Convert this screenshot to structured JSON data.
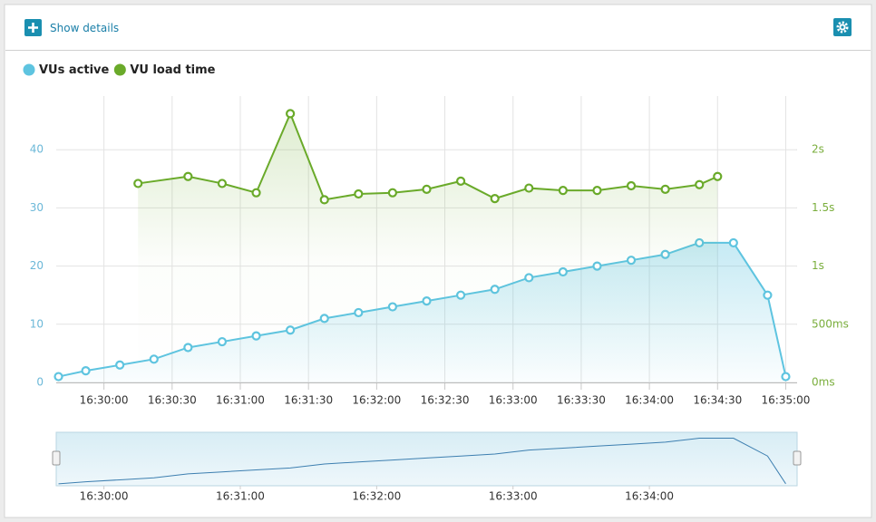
{
  "toolbar": {
    "button": "Show details"
  },
  "chart_data": {
    "type": "line",
    "series": [
      {
        "name": "VUs active",
        "color": "#5ec4e0",
        "x": [
          "16:29:40",
          "16:29:52",
          "16:30:07",
          "16:30:22",
          "16:30:37",
          "16:30:52",
          "16:31:07",
          "16:31:22",
          "16:31:37",
          "16:31:52",
          "16:32:07",
          "16:32:22",
          "16:32:37",
          "16:32:52",
          "16:33:07",
          "16:33:22",
          "16:33:37",
          "16:33:52",
          "16:34:07",
          "16:34:22",
          "16:34:37",
          "16:34:52",
          "16:35:00"
        ],
        "values": [
          1,
          2,
          3,
          4,
          6,
          7,
          8,
          9,
          11,
          12,
          13,
          14,
          15,
          16,
          18,
          19,
          20,
          21,
          22,
          24,
          24,
          15,
          1
        ]
      },
      {
        "name": "VU load time",
        "color": "#6aaa2a",
        "axis": "y2",
        "x": [
          "16:30:15",
          "16:30:37",
          "16:30:52",
          "16:31:07",
          "16:31:22",
          "16:31:37",
          "16:31:52",
          "16:32:07",
          "16:32:22",
          "16:32:37",
          "16:32:52",
          "16:33:07",
          "16:33:22",
          "16:33:37",
          "16:33:52",
          "16:34:07",
          "16:34:22",
          "16:34:30"
        ],
        "values": [
          1710,
          1770,
          1710,
          1630,
          2310,
          1570,
          1620,
          1630,
          1660,
          1730,
          1580,
          1670,
          1650,
          1650,
          1690,
          1660,
          1700,
          1770
        ]
      }
    ],
    "xlim": [
      "16:29:39",
      "16:35:05"
    ],
    "xticks": [
      "16:30:00",
      "16:30:30",
      "16:31:00",
      "16:31:30",
      "16:32:00",
      "16:32:30",
      "16:33:00",
      "16:33:30",
      "16:34:00",
      "16:34:30",
      "16:35:00"
    ],
    "ylim": [
      0,
      50
    ],
    "yticks": [
      0,
      10,
      20,
      30,
      40
    ],
    "y2lim": [
      0,
      2500
    ],
    "y2ticks": [
      {
        "value": 0,
        "label": "0ms"
      },
      {
        "value": 500,
        "label": "500ms"
      },
      {
        "value": 1000,
        "label": "1s"
      },
      {
        "value": 1500,
        "label": "1.5s"
      },
      {
        "value": 2000,
        "label": "2s"
      }
    ],
    "grid": true,
    "legend": "top-left",
    "navigator": {
      "xticks": [
        "16:30:00",
        "16:31:00",
        "16:32:00",
        "16:33:00",
        "16:34:00"
      ],
      "ylim": [
        0,
        27
      ]
    }
  }
}
